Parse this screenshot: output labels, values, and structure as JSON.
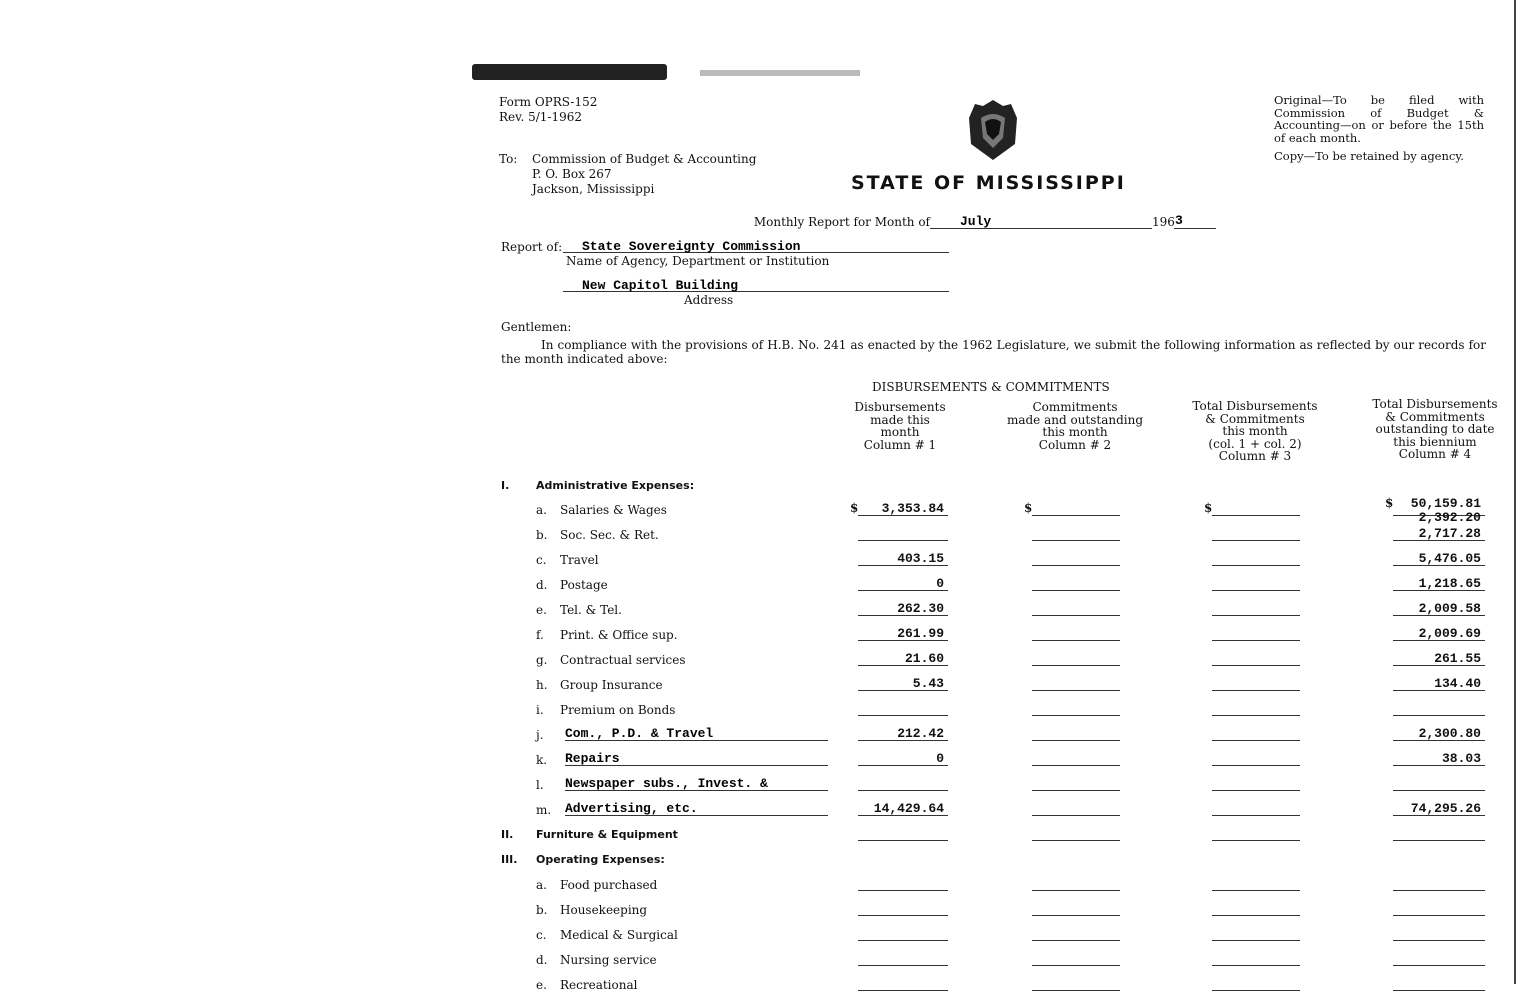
{
  "form": {
    "number": "Form OPRS-152",
    "revision": "Rev. 5/1-1962"
  },
  "filing_note": {
    "original": "Original—To be filed with Commission of Budget & Accounting—on or before the 15th of each month.",
    "copy": "Copy—To be retained by agency."
  },
  "to": {
    "label": "To:",
    "line1": "Commission of Budget & Accounting",
    "line2": "P. O. Box 267",
    "line3": "Jackson, Mississippi"
  },
  "title": "STATE OF MISSISSIPPI",
  "report_month": {
    "label": "Monthly Report for Month of",
    "month": "July",
    "year_prefix": "196",
    "year_suffix": "3"
  },
  "report_of": {
    "label": "Report of:",
    "agency": "State Sovereignty Commission",
    "agency_caption": "Name of Agency, Department or Institution",
    "address": "New Capitol Building",
    "address_caption": "Address"
  },
  "salutation": "Gentlemen:",
  "intro": "In compliance with the provisions of H.B. No. 241 as enacted by the 1962 Legislature, we submit the following information as reflected by our records for the month indicated above:",
  "table_title": "DISBURSEMENTS & COMMITMENTS",
  "columns": [
    [
      "Disbursements",
      "made this",
      "month",
      "Column # 1"
    ],
    [
      "Commitments",
      "made and outstanding",
      "this month",
      "Column # 2"
    ],
    [
      "Total Disbursements",
      "& Commitments",
      "this month",
      "(col. 1 + col. 2)",
      "Column # 3"
    ],
    [
      "Total Disbursements",
      "& Commitments",
      "outstanding to date",
      "this biennium",
      "Column # 4"
    ]
  ],
  "rows": [
    {
      "type": "section",
      "num": "I.",
      "label": "Administrative Expenses:"
    },
    {
      "letter": "a.",
      "label": "Salaries & Wages",
      "c1": "$ 3,353.84",
      "c2": "$",
      "c3": "$",
      "c4": "$ 50,159.81",
      "c4b": "2,392.20"
    },
    {
      "letter": "b.",
      "label": "Soc. Sec. & Ret.",
      "c1": "",
      "c4": "2,717.28"
    },
    {
      "letter": "c.",
      "label": "Travel",
      "c1": "403.15",
      "c4": "5,476.05"
    },
    {
      "letter": "d.",
      "label": "Postage",
      "c1": "0",
      "c4": "1,218.65"
    },
    {
      "letter": "e.",
      "label": "Tel. & Tel.",
      "c1": "262.30",
      "c4": "2,009.58"
    },
    {
      "letter": "f.",
      "label": "Print. & Office sup.",
      "c1": "261.99",
      "c4": "2,009.69"
    },
    {
      "letter": "g.",
      "label": "Contractual services",
      "c1": "21.60",
      "c4": "261.55"
    },
    {
      "letter": "h.",
      "label": "Group Insurance",
      "c1": "5.43",
      "c4": "134.40"
    },
    {
      "letter": "i.",
      "label": "Premium on Bonds",
      "c1": "",
      "c4": ""
    },
    {
      "letter": "j.",
      "label": "Com., P.D. & Travel",
      "typed": true,
      "c1": "212.42",
      "c4": "2,300.80"
    },
    {
      "letter": "k.",
      "label": "Repairs",
      "typed": true,
      "c1": "0",
      "c4": "38.03"
    },
    {
      "letter": "l.",
      "label": "Newspaper subs., Invest. &",
      "typed": true,
      "c1": "",
      "c4": ""
    },
    {
      "letter": "m.",
      "label": "Advertising, etc.",
      "typed": true,
      "c1": "14,429.64",
      "c4": "74,295.26"
    },
    {
      "type": "section",
      "num": "II.",
      "label": "Furniture & Equipment",
      "lines": true
    },
    {
      "type": "section",
      "num": "III.",
      "label": "Operating Expenses:"
    },
    {
      "letter": "a.",
      "label": "Food purchased"
    },
    {
      "letter": "b.",
      "label": "Housekeeping"
    },
    {
      "letter": "c.",
      "label": "Medical & Surgical"
    },
    {
      "letter": "d.",
      "label": "Nursing service"
    },
    {
      "letter": "e.",
      "label": "Recreational"
    }
  ]
}
